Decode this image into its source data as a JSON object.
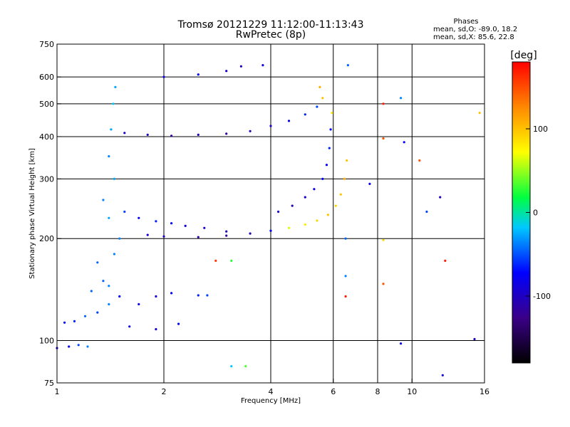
{
  "chart_data": {
    "type": "scatter",
    "title": "Tromsø 20121229 11:12:00-11:13:43",
    "subtitle": "RwPretec (8p)",
    "xlabel": "Frequency [MHz]",
    "ylabel": "Stationary phase Virtual Height [km]",
    "x_scale": "log",
    "y_scale": "log",
    "xlim": [
      1,
      16
    ],
    "ylim": [
      75,
      750
    ],
    "x_ticks": [
      1,
      2,
      4,
      6,
      8,
      10,
      16
    ],
    "y_ticks": [
      75,
      100,
      200,
      300,
      400,
      500,
      600,
      750
    ],
    "grid": true,
    "phases_box": {
      "heading": "Phases",
      "line_o": "mean, sd,O: -89.0, 18.2",
      "line_x": "mean, sd,X:  85.6, 22.8"
    },
    "colorbar": {
      "label": "[deg]",
      "range": [
        -180,
        180
      ],
      "ticks": [
        100,
        0,
        -100
      ]
    },
    "series": [
      {
        "name": "",
        "points": [
          {
            "x": 1.0,
            "y": 95,
            "phase": -90
          },
          {
            "x": 1.08,
            "y": 96,
            "phase": -80
          },
          {
            "x": 1.15,
            "y": 97,
            "phase": -60
          },
          {
            "x": 1.22,
            "y": 96,
            "phase": -40
          },
          {
            "x": 1.05,
            "y": 113,
            "phase": -80
          },
          {
            "x": 1.12,
            "y": 114,
            "phase": -70
          },
          {
            "x": 1.2,
            "y": 118,
            "phase": -50
          },
          {
            "x": 1.3,
            "y": 121,
            "phase": -60
          },
          {
            "x": 1.4,
            "y": 128,
            "phase": -40
          },
          {
            "x": 1.25,
            "y": 140,
            "phase": -50
          },
          {
            "x": 1.4,
            "y": 145,
            "phase": -40
          },
          {
            "x": 1.5,
            "y": 135,
            "phase": -80
          },
          {
            "x": 1.7,
            "y": 128,
            "phase": -90
          },
          {
            "x": 1.9,
            "y": 135,
            "phase": -100
          },
          {
            "x": 2.1,
            "y": 138,
            "phase": -80
          },
          {
            "x": 2.5,
            "y": 136,
            "phase": -70
          },
          {
            "x": 2.65,
            "y": 136,
            "phase": -60
          },
          {
            "x": 1.35,
            "y": 150,
            "phase": -50
          },
          {
            "x": 1.6,
            "y": 110,
            "phase": -90
          },
          {
            "x": 1.9,
            "y": 108,
            "phase": -100
          },
          {
            "x": 2.2,
            "y": 112,
            "phase": -80
          },
          {
            "x": 1.45,
            "y": 180,
            "phase": -40
          },
          {
            "x": 1.3,
            "y": 170,
            "phase": -50
          },
          {
            "x": 1.5,
            "y": 200,
            "phase": -40
          },
          {
            "x": 1.4,
            "y": 230,
            "phase": -30
          },
          {
            "x": 1.35,
            "y": 260,
            "phase": -40
          },
          {
            "x": 1.45,
            "y": 300,
            "phase": -30
          },
          {
            "x": 1.4,
            "y": 350,
            "phase": -40
          },
          {
            "x": 1.42,
            "y": 420,
            "phase": -30
          },
          {
            "x": 1.44,
            "y": 500,
            "phase": -20
          },
          {
            "x": 1.46,
            "y": 560,
            "phase": -30
          },
          {
            "x": 1.55,
            "y": 240,
            "phase": -60
          },
          {
            "x": 1.7,
            "y": 230,
            "phase": -80
          },
          {
            "x": 1.9,
            "y": 225,
            "phase": -70
          },
          {
            "x": 2.1,
            "y": 222,
            "phase": -80
          },
          {
            "x": 2.3,
            "y": 218,
            "phase": -90
          },
          {
            "x": 2.6,
            "y": 215,
            "phase": -100
          },
          {
            "x": 3.0,
            "y": 210,
            "phase": -110
          },
          {
            "x": 1.8,
            "y": 205,
            "phase": -100
          },
          {
            "x": 2.0,
            "y": 203,
            "phase": -110
          },
          {
            "x": 2.5,
            "y": 202,
            "phase": -120
          },
          {
            "x": 3.0,
            "y": 204,
            "phase": -120
          },
          {
            "x": 3.5,
            "y": 207,
            "phase": -110
          },
          {
            "x": 4.0,
            "y": 211,
            "phase": -80
          },
          {
            "x": 4.5,
            "y": 215,
            "phase": 60
          },
          {
            "x": 5.0,
            "y": 220,
            "phase": 80
          },
          {
            "x": 5.4,
            "y": 226,
            "phase": 90
          },
          {
            "x": 5.8,
            "y": 235,
            "phase": 100
          },
          {
            "x": 6.1,
            "y": 250,
            "phase": 90
          },
          {
            "x": 6.3,
            "y": 270,
            "phase": 100
          },
          {
            "x": 6.45,
            "y": 300,
            "phase": 110
          },
          {
            "x": 6.55,
            "y": 340,
            "phase": 100
          },
          {
            "x": 4.2,
            "y": 240,
            "phase": -100
          },
          {
            "x": 4.6,
            "y": 250,
            "phase": -110
          },
          {
            "x": 5.0,
            "y": 265,
            "phase": -100
          },
          {
            "x": 5.3,
            "y": 280,
            "phase": -90
          },
          {
            "x": 5.6,
            "y": 300,
            "phase": -80
          },
          {
            "x": 5.75,
            "y": 330,
            "phase": -80
          },
          {
            "x": 5.85,
            "y": 370,
            "phase": -70
          },
          {
            "x": 5.9,
            "y": 420,
            "phase": -80
          },
          {
            "x": 5.95,
            "y": 470,
            "phase": 80
          },
          {
            "x": 5.6,
            "y": 520,
            "phase": 100
          },
          {
            "x": 5.5,
            "y": 560,
            "phase": 110
          },
          {
            "x": 1.55,
            "y": 410,
            "phase": -100
          },
          {
            "x": 1.8,
            "y": 405,
            "phase": -110
          },
          {
            "x": 2.1,
            "y": 402,
            "phase": -120
          },
          {
            "x": 2.5,
            "y": 405,
            "phase": -110
          },
          {
            "x": 3.0,
            "y": 408,
            "phase": -120
          },
          {
            "x": 3.5,
            "y": 415,
            "phase": -110
          },
          {
            "x": 4.0,
            "y": 430,
            "phase": -100
          },
          {
            "x": 4.5,
            "y": 445,
            "phase": -90
          },
          {
            "x": 5.0,
            "y": 465,
            "phase": -70
          },
          {
            "x": 5.4,
            "y": 490,
            "phase": -60
          },
          {
            "x": 2.0,
            "y": 600,
            "phase": -90
          },
          {
            "x": 2.5,
            "y": 610,
            "phase": -80
          },
          {
            "x": 3.0,
            "y": 625,
            "phase": -100
          },
          {
            "x": 3.3,
            "y": 645,
            "phase": -110
          },
          {
            "x": 3.8,
            "y": 650,
            "phase": -90
          },
          {
            "x": 6.6,
            "y": 650,
            "phase": -50
          },
          {
            "x": 6.5,
            "y": 200,
            "phase": -50
          },
          {
            "x": 6.5,
            "y": 155,
            "phase": -40
          },
          {
            "x": 6.5,
            "y": 135,
            "phase": 170
          },
          {
            "x": 8.3,
            "y": 500,
            "phase": 170
          },
          {
            "x": 8.3,
            "y": 395,
            "phase": 150
          },
          {
            "x": 8.3,
            "y": 198,
            "phase": 90
          },
          {
            "x": 8.3,
            "y": 147,
            "phase": 150
          },
          {
            "x": 9.3,
            "y": 520,
            "phase": -40
          },
          {
            "x": 9.5,
            "y": 385,
            "phase": -80
          },
          {
            "x": 10.5,
            "y": 340,
            "phase": 150
          },
          {
            "x": 11.0,
            "y": 240,
            "phase": -60
          },
          {
            "x": 12.0,
            "y": 265,
            "phase": -110
          },
          {
            "x": 12.4,
            "y": 172,
            "phase": 170
          },
          {
            "x": 7.6,
            "y": 290,
            "phase": -90
          },
          {
            "x": 9.3,
            "y": 98,
            "phase": -90
          },
          {
            "x": 15.0,
            "y": 101,
            "phase": -110
          },
          {
            "x": 12.2,
            "y": 79,
            "phase": -90
          },
          {
            "x": 3.1,
            "y": 84,
            "phase": -20
          },
          {
            "x": 3.4,
            "y": 84,
            "phase": 20
          },
          {
            "x": 3.1,
            "y": 172,
            "phase": 10
          },
          {
            "x": 2.8,
            "y": 172,
            "phase": 160
          },
          {
            "x": 15.5,
            "y": 470,
            "phase": 100
          }
        ]
      }
    ]
  }
}
